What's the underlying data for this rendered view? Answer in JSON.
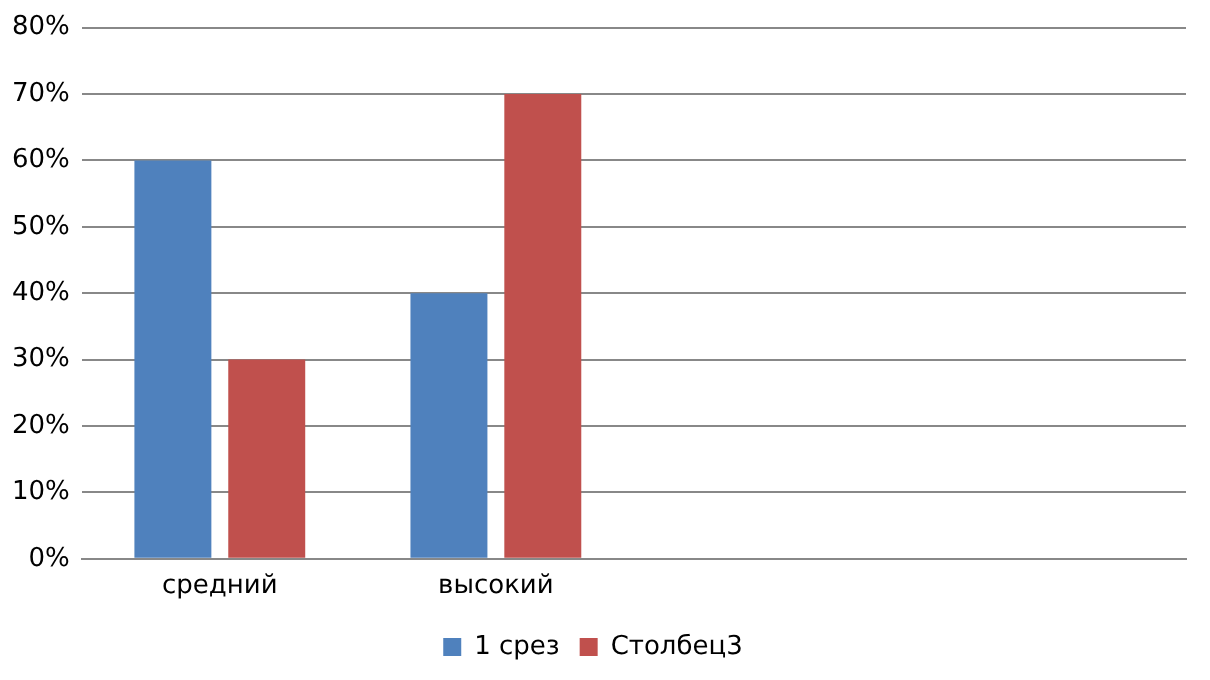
{
  "chart_data": {
    "type": "bar",
    "categories": [
      "средний",
      "высокий",
      null,
      null
    ],
    "series": [
      {
        "name": "1 срез",
        "color": "#4f81bd",
        "values": [
          60,
          40,
          null,
          null
        ]
      },
      {
        "name": "Столбец3",
        "color": "#c0504d",
        "values": [
          30,
          70,
          null,
          null
        ]
      }
    ],
    "ylim": [
      0,
      80
    ],
    "yticks": [
      {
        "value": 0,
        "label": "0%"
      },
      {
        "value": 10,
        "label": "10%"
      },
      {
        "value": 20,
        "label": "20%"
      },
      {
        "value": 30,
        "label": "30%"
      },
      {
        "value": 40,
        "label": "40%"
      },
      {
        "value": 50,
        "label": "50%"
      },
      {
        "value": 60,
        "label": "60%"
      },
      {
        "value": 70,
        "label": "70%"
      },
      {
        "value": 80,
        "label": "80%"
      }
    ],
    "grid": "y",
    "legend": "bottom"
  }
}
